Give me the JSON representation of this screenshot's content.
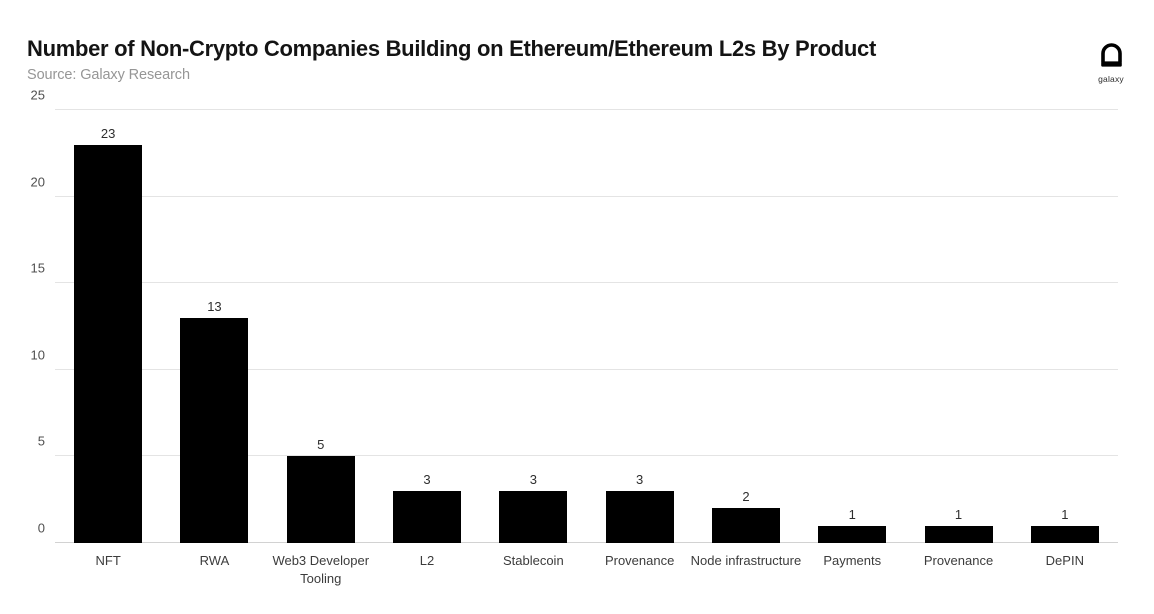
{
  "header": {
    "title": "Number of Non-Crypto Companies Building on Ethereum/Ethereum L2s By Product",
    "source": "Source: Galaxy Research",
    "logo_text": "galaxy",
    "logo_icon": "galaxy-helmet-icon"
  },
  "colors": {
    "bar": "#000000",
    "gridline": "#e4e4e4",
    "baseline": "#d2d2d2",
    "tick_label": "#4f4f4f",
    "value_label": "#2e2e2e",
    "category_label": "#3c3c3c",
    "title": "#141414",
    "source": "#969696"
  },
  "chart_data": {
    "type": "bar",
    "title": "Number of Non-Crypto Companies Building on Ethereum/Ethereum L2s By Product",
    "subtitle": "Source: Galaxy Research",
    "categories": [
      "NFT",
      "RWA",
      "Web3 Developer Tooling",
      "L2",
      "Stablecoin",
      "Provenance",
      "Node infrastructure",
      "Payments",
      "Provenance",
      "DePIN"
    ],
    "values": [
      23,
      13,
      5,
      3,
      3,
      3,
      2,
      1,
      1,
      1
    ],
    "value_labels": true,
    "xlabel": "",
    "ylabel": "",
    "ylim": [
      0,
      25
    ],
    "yticks": [
      0,
      5,
      10,
      15,
      20,
      25
    ],
    "grid": "horizontal",
    "legend": "none",
    "bar_color": "#000000",
    "background": "#ffffff"
  }
}
